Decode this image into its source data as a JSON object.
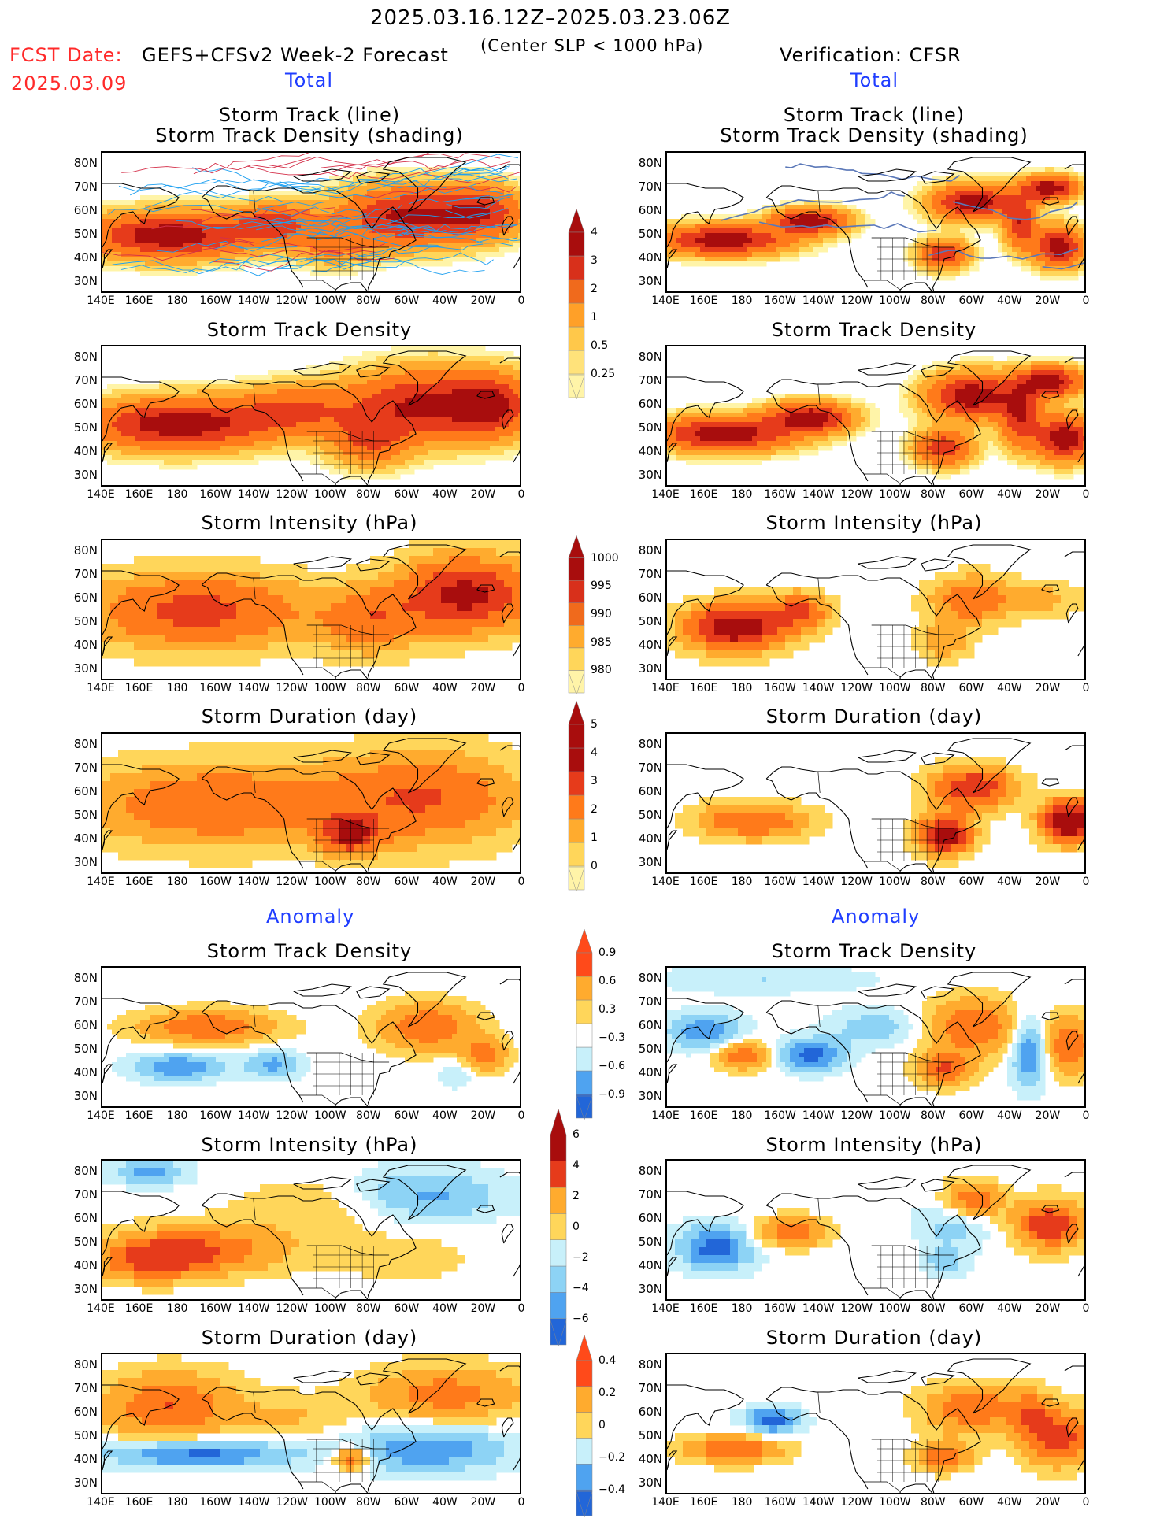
{
  "header": {
    "date_range": "2025.03.16.12Z–2025.03.23.06Z",
    "fcst_label": "FCST Date:",
    "fcst_date": "2025.03.09",
    "model_title": "GEFS+CFSv2 Week-2 Forecast",
    "criterion": "(Center SLP < 1000 hPa)",
    "verification": "Verification: CFSR"
  },
  "sections": {
    "total": "Total",
    "anomaly": "Anomaly"
  },
  "panel_titles": {
    "track_line": "Storm Track (line)",
    "track_density_shading": "Storm Track Density (shading)",
    "track_density": "Storm Track Density",
    "intensity": "Storm Intensity (hPa)",
    "duration": "Storm Duration (day)"
  },
  "axes": {
    "lat_labels": [
      "80N",
      "70N",
      "60N",
      "50N",
      "40N",
      "30N"
    ],
    "lon_labels": [
      "140E",
      "160E",
      "180",
      "160W",
      "140W",
      "120W",
      "100W",
      "80W",
      "60W",
      "40W",
      "20W",
      "0"
    ]
  },
  "colorbars": {
    "density_total": [
      "0.25",
      "0.5",
      "1",
      "2",
      "3",
      "4"
    ],
    "intensity_total": [
      "1000",
      "995",
      "990",
      "985",
      "980"
    ],
    "duration_total": [
      "0",
      "1",
      "2",
      "3",
      "4",
      "5"
    ],
    "density_anomaly": [
      "−0.9",
      "−0.6",
      "−0.3",
      "0.3",
      "0.6",
      "0.9"
    ],
    "intensity_anomaly": [
      "−6",
      "−4",
      "−2",
      "0",
      "2",
      "4",
      "6"
    ],
    "duration_anomaly": [
      "−0.4",
      "−0.2",
      "0",
      "0.2",
      "0.4"
    ]
  },
  "colors": {
    "warm": [
      "#fff4a8",
      "#ffd65a",
      "#ffab2e",
      "#ff7a1a",
      "#e63b1b",
      "#a80d0d"
    ],
    "cool": [
      "#c8f0fa",
      "#8dd3f5",
      "#4fa3f0",
      "#2266d8"
    ],
    "track_line": "#1fa0f0"
  }
}
